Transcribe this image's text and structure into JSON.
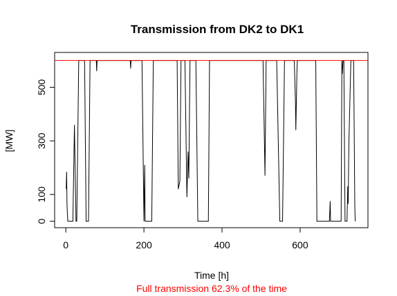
{
  "chart_data": {
    "type": "line",
    "title": "Transmission from DK2 to DK1",
    "subtitle": "Full transmission 62.3% of the time",
    "subtitle_color": "#ff0000",
    "x_label": "Time [h]",
    "y_label": "[MW]",
    "xlim": [
      -28.7,
      773.7
    ],
    "ylim": [
      -24,
      630
    ],
    "xticks": [
      0,
      200,
      400,
      600
    ],
    "yticks": [
      0,
      100,
      300,
      500
    ],
    "reference_line": {
      "value": 600,
      "color": "#ff0000"
    },
    "x": [
      1,
      2,
      3,
      5,
      18,
      22,
      26,
      28,
      33,
      48,
      52,
      58,
      62,
      78,
      79,
      80,
      165,
      166,
      167,
      195,
      200,
      202,
      203,
      220,
      224,
      285,
      288,
      292,
      295,
      305,
      310,
      313,
      315,
      318,
      333,
      338,
      365,
      368,
      505,
      510,
      513,
      540,
      548,
      555,
      560,
      585,
      588,
      589,
      592,
      593,
      640,
      643,
      675,
      677,
      678,
      705,
      707,
      708,
      710,
      712,
      715,
      720,
      722,
      723,
      725,
      730,
      737,
      740,
      741
    ],
    "series": [
      {
        "name": "transmission",
        "color": "#000000",
        "values": [
          120,
          185,
          60,
          0,
          0,
          360,
          0,
          0,
          600,
          600,
          0,
          0,
          600,
          600,
          560,
          600,
          600,
          570,
          600,
          600,
          0,
          210,
          0,
          0,
          600,
          600,
          120,
          150,
          600,
          600,
          90,
          260,
          160,
          600,
          600,
          0,
          0,
          600,
          600,
          170,
          600,
          600,
          0,
          0,
          600,
          600,
          450,
          340,
          570,
          600,
          600,
          0,
          0,
          75,
          0,
          0,
          600,
          550,
          600,
          600,
          0,
          0,
          130,
          65,
          300,
          600,
          600,
          60,
          0
        ]
      }
    ]
  }
}
